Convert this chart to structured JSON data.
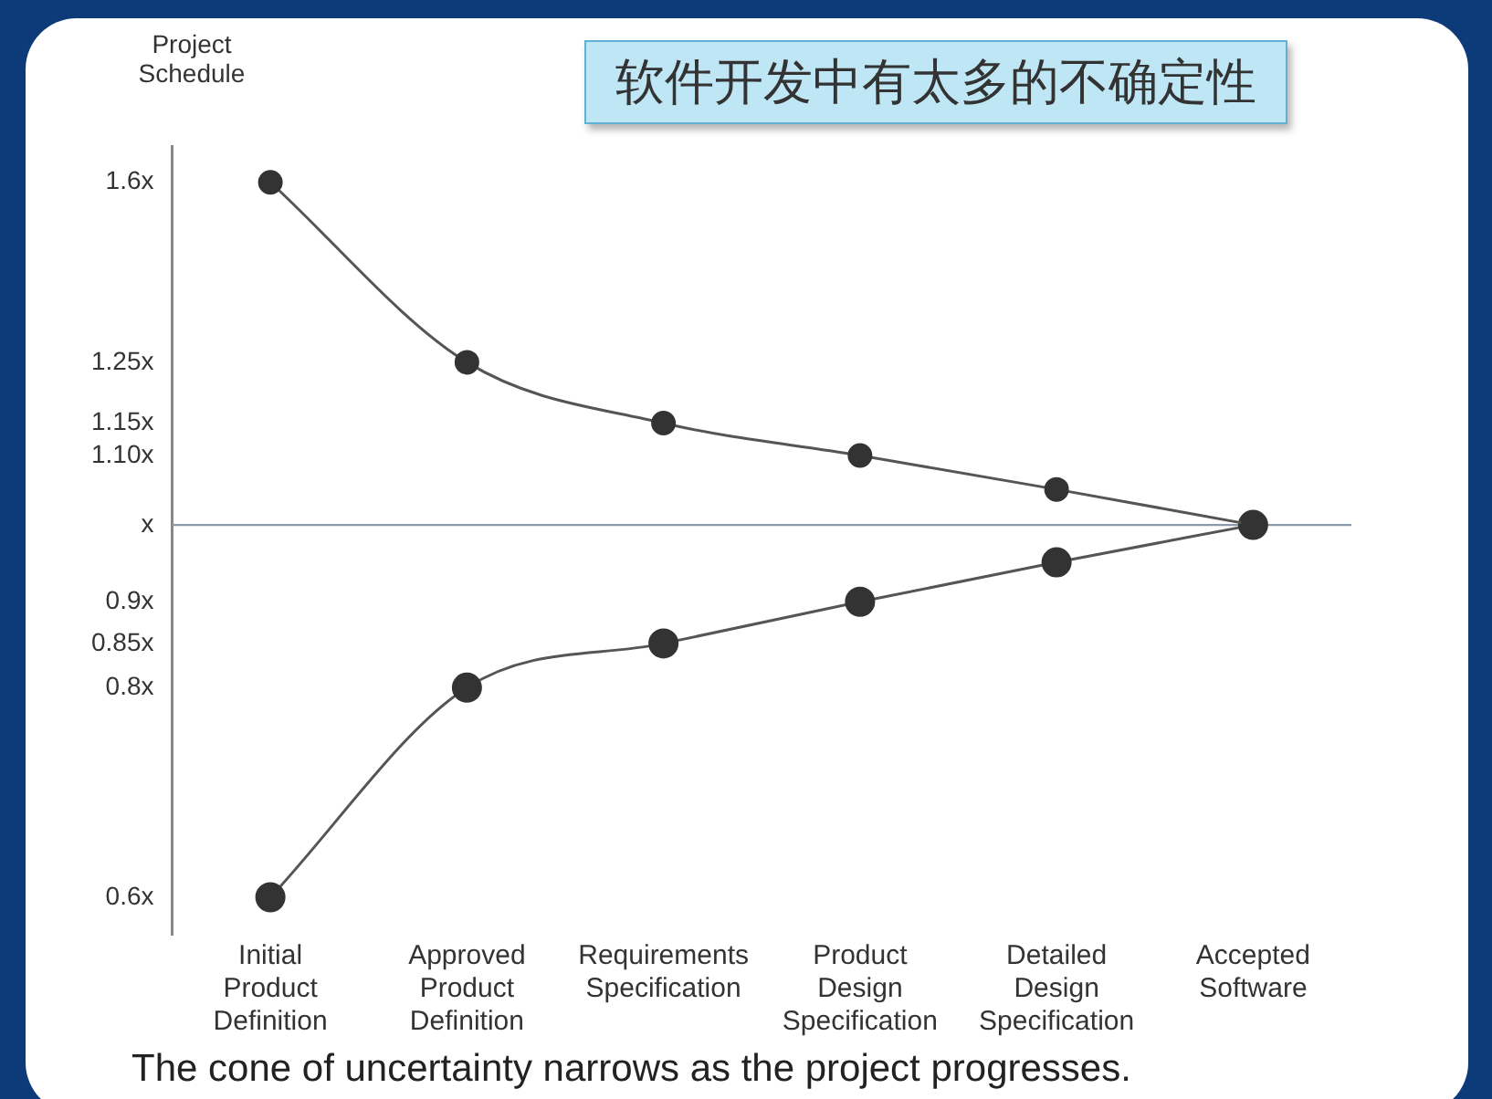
{
  "chart_data": {
    "type": "line",
    "title": "软件开发中有太多的不确定性",
    "ylabel": "Project Schedule",
    "categories": [
      "Initial Product Definition",
      "Approved Product Definition",
      "Requirements Specification",
      "Product Design Specification",
      "Detailed Design Specification",
      "Accepted Software"
    ],
    "series": [
      {
        "color": "#333333",
        "values": [
          1.6,
          1.25,
          1.15,
          1.1,
          1.05,
          1
        ]
      },
      {
        "color": "#333333",
        "values": [
          0.6,
          0.8,
          0.85,
          0.9,
          0.95,
          1
        ]
      }
    ],
    "log": true,
    "ylim": [
      0.57,
      1.68
    ],
    "yticks": [
      {
        "value": 0.6,
        "label": "0.6x"
      },
      {
        "value": 0.8,
        "label": "0.8x"
      },
      {
        "value": 0.85,
        "label": "0.85x"
      },
      {
        "value": 0.9,
        "label": "0.9x"
      },
      {
        "value": 1,
        "label": "x"
      },
      {
        "value": 1.1,
        "label": "1.10x"
      },
      {
        "value": 1.15,
        "label": "1.15x"
      },
      {
        "value": 1.25,
        "label": "1.25x"
      },
      {
        "value": 1.6,
        "label": "1.6x"
      }
    ],
    "ref_lines": [
      {
        "axis": "y",
        "value": 1,
        "color": "#8a9aaa"
      }
    ],
    "marker": "circle",
    "line_style": "solid",
    "grid": false,
    "legend": false,
    "annotations": [
      "The cone of uncertainty narrows as the project progresses."
    ]
  }
}
